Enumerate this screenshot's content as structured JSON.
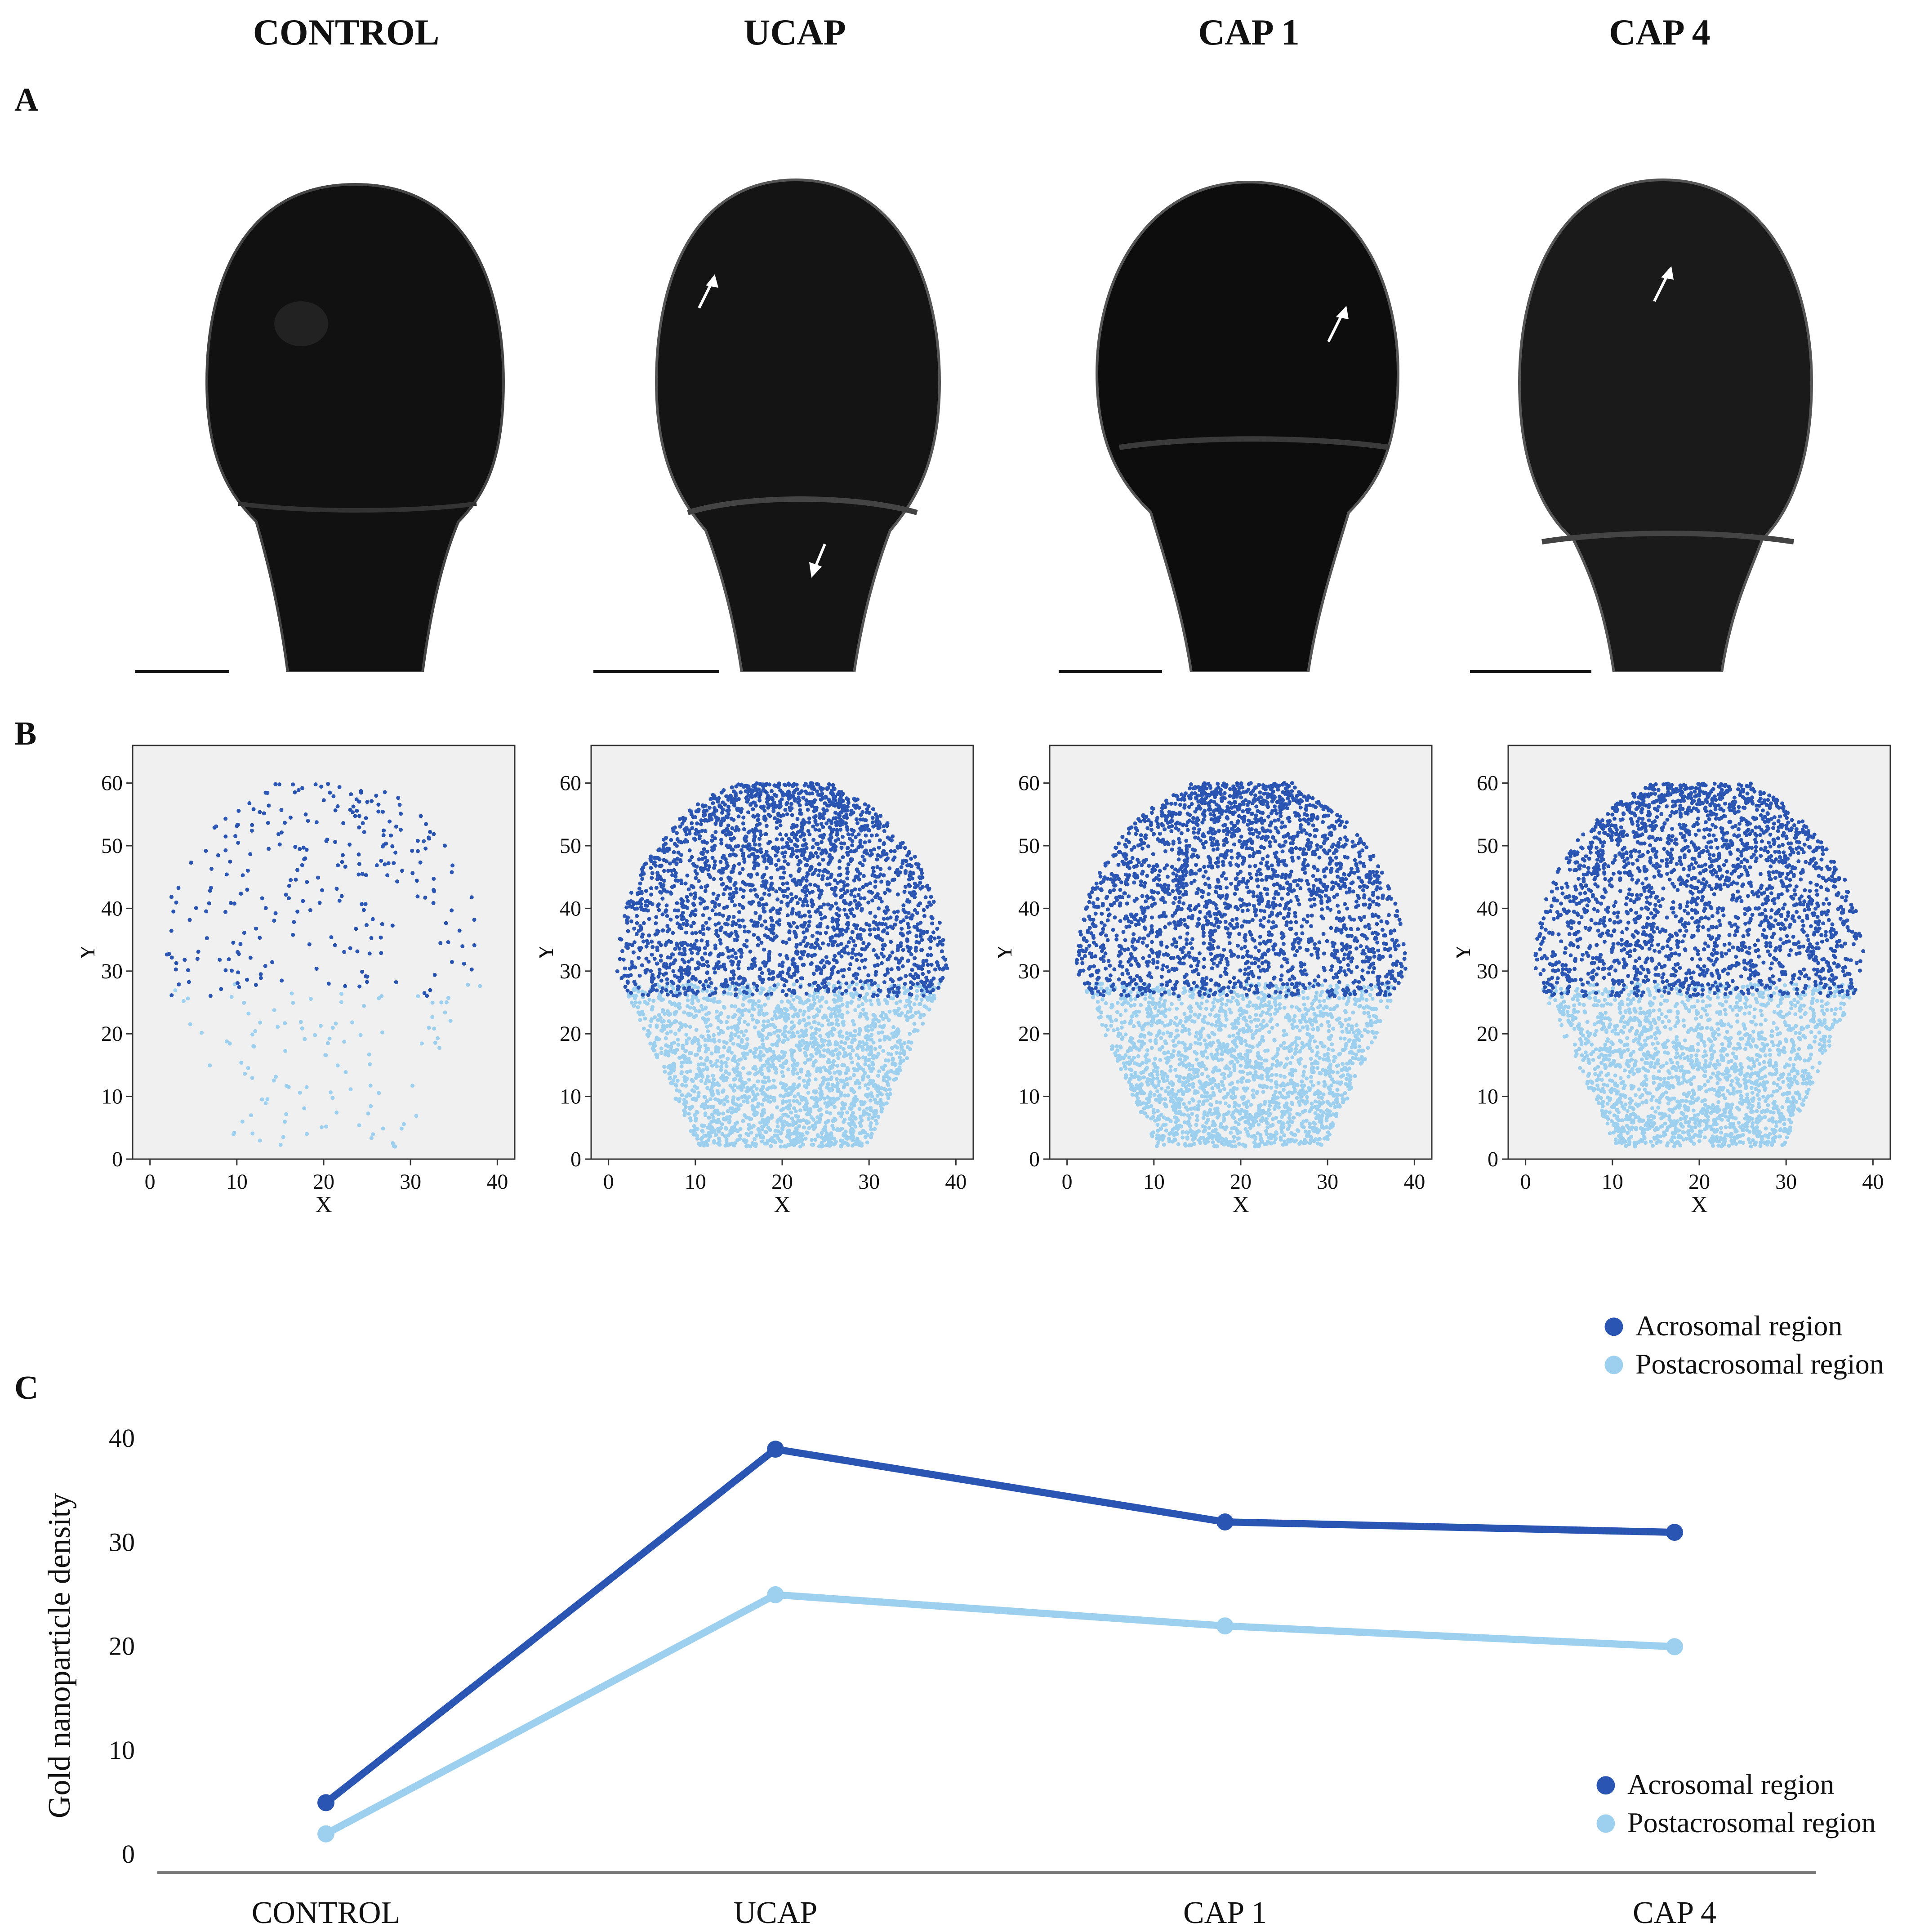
{
  "columns": [
    "CONTROL",
    "UCAP",
    "CAP 1",
    "CAP 4"
  ],
  "panels": {
    "a": "A",
    "b": "B",
    "c": "C"
  },
  "icons": {
    "arrow": "arrow-icon",
    "marker": "circle-marker-icon"
  },
  "colors": {
    "acrosomal": "#2a55b3",
    "postacrosomal": "#9dd0ef",
    "panel_bg": "#f0f0f0",
    "axis": "#111111"
  },
  "scatter_panels": [
    {
      "name": "CONTROL",
      "acrosomal_count": 260,
      "postacrosomal_count": 110
    },
    {
      "name": "UCAP",
      "acrosomal_count": 2400,
      "postacrosomal_count": 2100
    },
    {
      "name": "CAP 1",
      "acrosomal_count": 2300,
      "postacrosomal_count": 2000
    },
    {
      "name": "CAP 4",
      "acrosomal_count": 2200,
      "postacrosomal_count": 1900
    }
  ],
  "chart_data": [
    {
      "type": "scatter",
      "panel": "B",
      "xlabel": "X",
      "ylabel": "Y",
      "xlim": [
        -2,
        42
      ],
      "ylim": [
        0,
        66
      ],
      "xticks": [
        0,
        10,
        20,
        30,
        40
      ],
      "yticks": [
        0,
        10,
        20,
        30,
        40,
        50,
        60
      ],
      "series": [
        {
          "name": "Acrosomal region",
          "y_range": [
            26,
            60
          ]
        },
        {
          "name": "Postacrosomal region",
          "y_range": [
            2,
            28
          ]
        }
      ]
    },
    {
      "type": "line",
      "panel": "C",
      "categories": [
        "CONTROL",
        "UCAP",
        "CAP 1",
        "CAP 4"
      ],
      "series": [
        {
          "name": "Acrosomal region",
          "values": [
            5,
            39,
            32,
            31
          ]
        },
        {
          "name": "Postacrosomal region",
          "values": [
            2,
            25,
            22,
            20
          ]
        }
      ],
      "xlabel": "",
      "ylabel": "Gold nanoparticle density",
      "ylim": [
        0,
        40
      ],
      "yticks": [
        0,
        10,
        20,
        30,
        40
      ],
      "legend": [
        "Acrosomal region",
        "Postacrosomal region"
      ]
    }
  ]
}
